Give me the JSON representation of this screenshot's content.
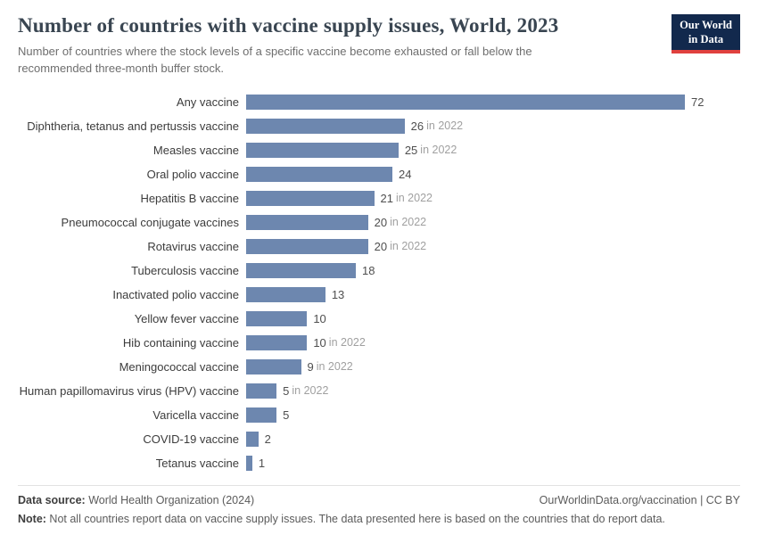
{
  "header": {
    "title": "Number of countries with vaccine supply issues, World, 2023",
    "subtitle": "Number of countries where the stock levels of a specific vaccine become exhausted or fall below the recommended three-month buffer stock.",
    "logo_line1": "Our World",
    "logo_line2": "in Data"
  },
  "chart_data": {
    "type": "bar",
    "orientation": "horizontal",
    "title": "Number of countries with vaccine supply issues, World, 2023",
    "categories": [
      "Any vaccine",
      "Diphtheria, tetanus and pertussis vaccine",
      "Measles vaccine",
      "Oral polio vaccine",
      "Hepatitis B vaccine",
      "Pneumococcal conjugate vaccines",
      "Rotavirus vaccine",
      "Tuberculosis vaccine",
      "Inactivated polio vaccine",
      "Yellow fever vaccine",
      "Hib containing vaccine",
      "Meningococcal vaccine",
      "Human papillomavirus virus (HPV) vaccine",
      "Varicella vaccine",
      "COVID-19 vaccine",
      "Tetanus vaccine"
    ],
    "values": [
      72,
      26,
      25,
      24,
      21,
      20,
      20,
      18,
      13,
      10,
      10,
      9,
      5,
      5,
      2,
      1
    ],
    "value_suffixes": [
      "",
      "in 2022",
      "in 2022",
      "",
      "in 2022",
      "in 2022",
      "in 2022",
      "",
      "",
      "",
      "in 2022",
      "in 2022",
      "in 2022",
      "",
      "",
      ""
    ],
    "xlim": [
      0,
      72
    ],
    "bar_color": "#6d87af",
    "grid": false,
    "legend": "none"
  },
  "footer": {
    "source_label": "Data source:",
    "source_text": " World Health Organization (2024)",
    "right_text": "OurWorldinData.org/vaccination | CC BY",
    "note_label": "Note:",
    "note_text": " Not all countries report data on vaccine supply issues. The data presented here is based on the countries that do report data."
  }
}
